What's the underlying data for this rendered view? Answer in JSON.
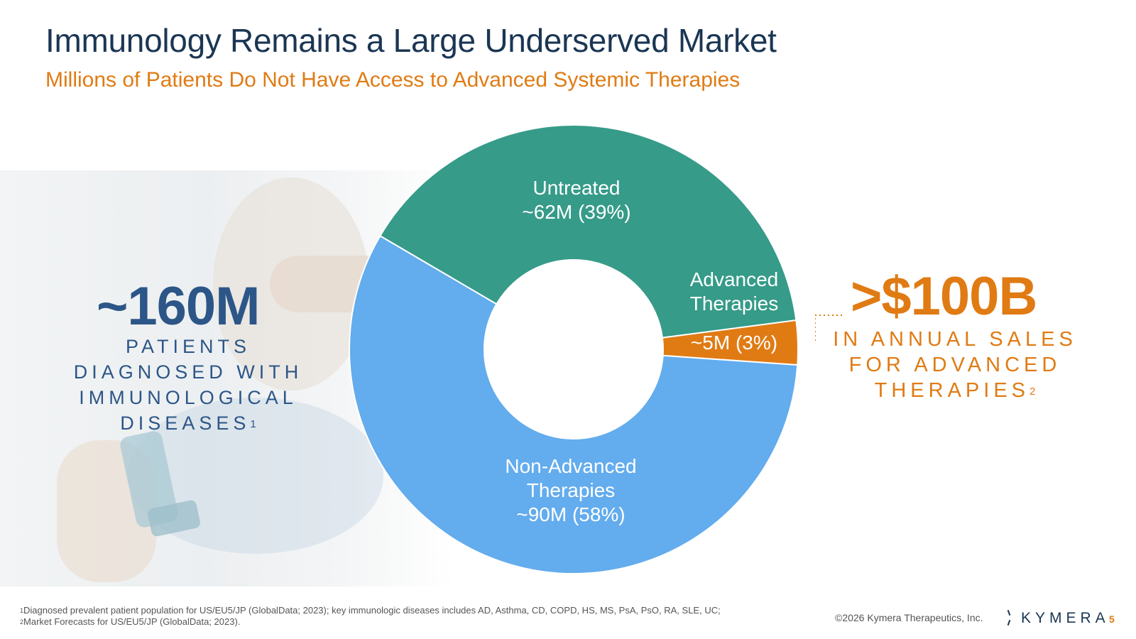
{
  "slide": {
    "title": "Immunology Remains a Large Underserved Market",
    "subtitle": "Millions of Patients Do Not Have Access to Advanced Systemic Therapies"
  },
  "left_stat": {
    "value": "~160M",
    "lines": [
      "PATIENTS",
      "DIAGNOSED WITH",
      "IMMUNOLOGICAL",
      "DISEASES"
    ],
    "footnote_marker": "1"
  },
  "right_stat": {
    "value": ">$100B",
    "lines": [
      "IN ANNUAL SALES",
      "FOR ADVANCED",
      "THERAPIES"
    ],
    "footnote_marker": "2"
  },
  "chart_data": {
    "type": "pie",
    "donut": true,
    "slices": [
      {
        "name": "Advanced Therapies",
        "value": 5,
        "percent": 3,
        "color": "#e07b14",
        "label_lines": [
          "~5M (3%)"
        ],
        "name_lines": [
          "Advanced",
          "Therapies"
        ]
      },
      {
        "name": "Untreated",
        "value": 62,
        "percent": 39,
        "color": "#369b89",
        "label_lines": [
          "Untreated",
          "~62M (39%)"
        ]
      },
      {
        "name": "Non-Advanced Therapies",
        "value": 90,
        "percent": 58,
        "color": "#63aced",
        "label_lines": [
          "Non-Advanced",
          "Therapies",
          "~90M (58%)"
        ]
      }
    ]
  },
  "footer": {
    "footnote1": "Diagnosed prevalent patient population for US/EU5/JP (GlobalData; 2023); key immunologic diseases includes AD, Asthma, CD, COPD, HS, MS, PsA, PsO, RA, SLE, UC;",
    "footnote1_marker": "1",
    "footnote2": "Market Forecasts for US/EU5/JP (GlobalData; 2023).",
    "footnote2_marker": "2",
    "copyright": "©2026 Kymera Therapeutics, Inc.",
    "logo_text": "KYMERA",
    "page_number": "5"
  },
  "colors": {
    "title": "#1b3654",
    "accent_orange": "#e07b14",
    "stat_blue": "#2c5687"
  }
}
